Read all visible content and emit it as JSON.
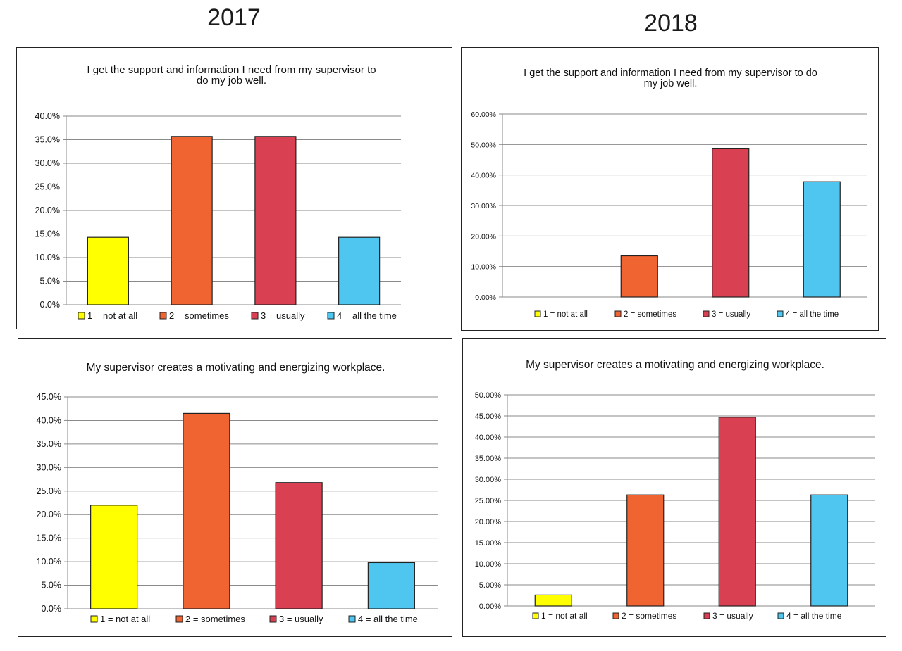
{
  "headings": {
    "left": "2017",
    "right": "2018"
  },
  "colors": {
    "cat1": "#ffff00",
    "cat2": "#f06432",
    "cat3": "#d94052",
    "cat4": "#4fc6ef",
    "grid": "#8a8a8a",
    "bar_stroke": "#222222"
  },
  "chart_data": [
    {
      "type": "bar",
      "title": "I get the support and information I need from my supervisor to do my job well.",
      "title_lines": [
        "I get the support and information I need from my supervisor to",
        "do my job well."
      ],
      "categories": [
        "1 = not at all",
        "2 = sometimes",
        "3 = usually",
        "4 = all the time"
      ],
      "values": [
        14.3,
        35.7,
        35.7,
        14.3
      ],
      "ylim": [
        0,
        40
      ],
      "ystep": 5,
      "tick_decimals": 1,
      "grid": true,
      "legend_position": "bottom"
    },
    {
      "type": "bar",
      "title": "I get the support and information I need from my supervisor to do my job well.",
      "title_lines": [
        "I get the support and information I need from my supervisor to do",
        "my job well."
      ],
      "categories": [
        "1 = not at all",
        "2 = sometimes",
        "3 = usually",
        "4 = all the time"
      ],
      "values": [
        0,
        13.5,
        48.6,
        37.8
      ],
      "ylim": [
        0,
        60
      ],
      "ystep": 10,
      "tick_decimals": 2,
      "grid": true,
      "legend_position": "bottom"
    },
    {
      "type": "bar",
      "title": "My supervisor creates a motivating and energizing workplace.",
      "title_lines": [
        "My supervisor creates a motivating and energizing workplace."
      ],
      "categories": [
        "1 = not at all",
        "2 = sometimes",
        "3 = usually",
        "4 = all the time"
      ],
      "values": [
        22.0,
        41.5,
        26.8,
        9.8
      ],
      "ylim": [
        0,
        45
      ],
      "ystep": 5,
      "tick_decimals": 1,
      "grid": true,
      "legend_position": "bottom"
    },
    {
      "type": "bar",
      "title": "My supervisor creates a motivating and energizing workplace.",
      "title_lines": [
        "My supervisor creates a motivating and energizing workplace."
      ],
      "categories": [
        "1 = not at all",
        "2 = sometimes",
        "3 = usually",
        "4 = all the time"
      ],
      "values": [
        2.6,
        26.3,
        44.7,
        26.3
      ],
      "ylim": [
        0,
        50
      ],
      "ystep": 5,
      "tick_decimals": 2,
      "grid": true,
      "legend_position": "bottom"
    }
  ]
}
